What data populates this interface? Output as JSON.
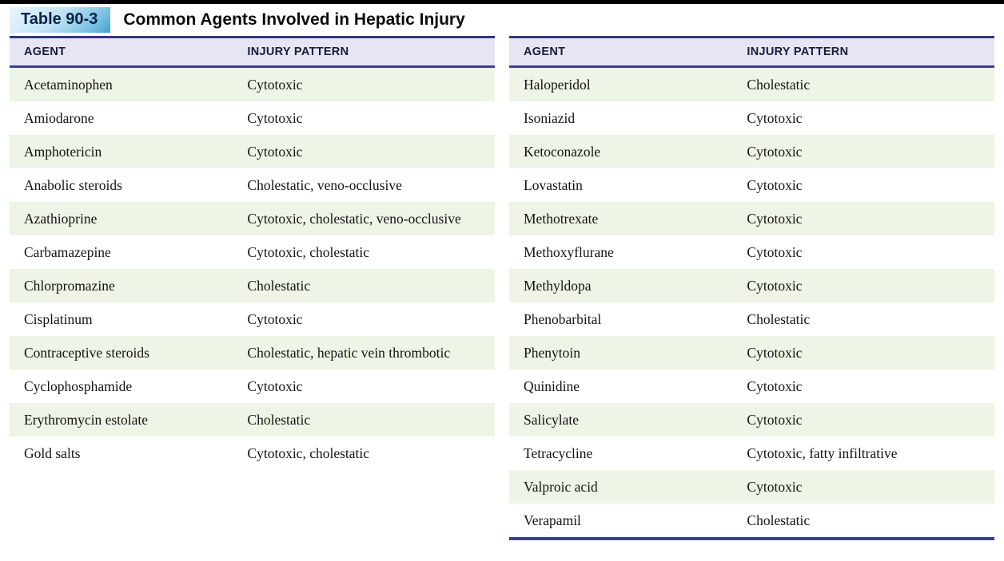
{
  "header": {
    "table_label": "Table 90-3",
    "title": "Common Agents Involved in Hepatic Injury"
  },
  "columns": {
    "agent": "AGENT",
    "injury": "INJURY PATTERN"
  },
  "left_table": {
    "rows": [
      {
        "agent": "Acetaminophen",
        "injury": "Cytotoxic"
      },
      {
        "agent": "Amiodarone",
        "injury": "Cytotoxic"
      },
      {
        "agent": "Amphotericin",
        "injury": "Cytotoxic"
      },
      {
        "agent": "Anabolic steroids",
        "injury": "Cholestatic, veno-occlusive"
      },
      {
        "agent": "Azathioprine",
        "injury": "Cytotoxic, cholestatic, veno-occlusive"
      },
      {
        "agent": "Carbamazepine",
        "injury": "Cytotoxic, cholestatic"
      },
      {
        "agent": "Chlorpromazine",
        "injury": "Cholestatic"
      },
      {
        "agent": "Cisplatinum",
        "injury": "Cytotoxic"
      },
      {
        "agent": "Contraceptive steroids",
        "injury": "Cholestatic, hepatic vein thrombotic"
      },
      {
        "agent": "Cyclophosphamide",
        "injury": "Cytotoxic"
      },
      {
        "agent": "Erythromycin estolate",
        "injury": "Cholestatic"
      },
      {
        "agent": "Gold salts",
        "injury": "Cytotoxic, cholestatic"
      }
    ]
  },
  "right_table": {
    "rows": [
      {
        "agent": "Haloperidol",
        "injury": "Cholestatic"
      },
      {
        "agent": "Isoniazid",
        "injury": "Cytotoxic"
      },
      {
        "agent": "Ketoconazole",
        "injury": "Cytotoxic"
      },
      {
        "agent": "Lovastatin",
        "injury": "Cytotoxic"
      },
      {
        "agent": "Methotrexate",
        "injury": "Cytotoxic"
      },
      {
        "agent": "Methoxyflurane",
        "injury": "Cytotoxic"
      },
      {
        "agent": "Methyldopa",
        "injury": "Cytotoxic"
      },
      {
        "agent": "Phenobarbital",
        "injury": "Cholestatic"
      },
      {
        "agent": "Phenytoin",
        "injury": "Cytotoxic"
      },
      {
        "agent": "Quinidine",
        "injury": "Cytotoxic"
      },
      {
        "agent": "Salicylate",
        "injury": "Cytotoxic"
      },
      {
        "agent": "Tetracycline",
        "injury": "Cytotoxic, fatty infiltrative"
      },
      {
        "agent": "Valproic acid",
        "injury": "Cytotoxic"
      },
      {
        "agent": "Verapamil",
        "injury": "Cholestatic"
      }
    ]
  },
  "colors": {
    "accent_navy": "#3b3e94",
    "header_bg": "#e7e5f4",
    "stripe_green": "#eef4e6",
    "tab_blue_light": "#c3e4f6",
    "tab_blue_dark": "#3f9fd4"
  }
}
